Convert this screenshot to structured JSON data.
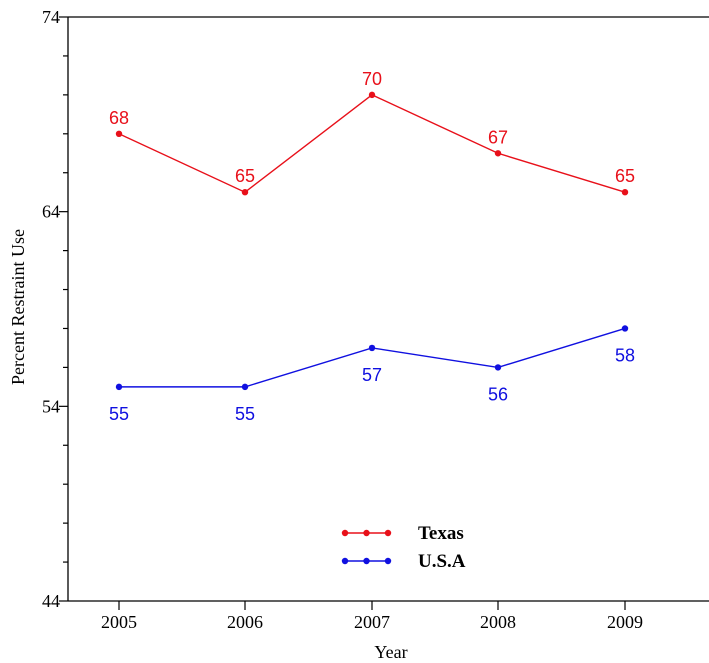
{
  "chart_data": {
    "type": "line",
    "title": "",
    "title_color": "#1a6fb5",
    "xlabel": "Year",
    "ylabel": "Percent Restraint Use",
    "categories": [
      "2005",
      "2006",
      "2007",
      "2008",
      "2009"
    ],
    "ylim": [
      44,
      74
    ],
    "yticks": [
      44,
      54,
      64,
      74
    ],
    "grid": false,
    "legend_position": "bottom-center",
    "series": [
      {
        "name": "Texas",
        "color": "#e8101a",
        "values": [
          68,
          65,
          70,
          67,
          65
        ],
        "data_labels": [
          "68",
          "65",
          "70",
          "67",
          "65"
        ],
        "label_position": "above"
      },
      {
        "name": "U.S.A",
        "color": "#1010e0",
        "values": [
          55,
          55,
          57,
          56,
          58
        ],
        "data_labels": [
          "55",
          "55",
          "57",
          "56",
          "58"
        ],
        "label_position": "below"
      }
    ]
  }
}
